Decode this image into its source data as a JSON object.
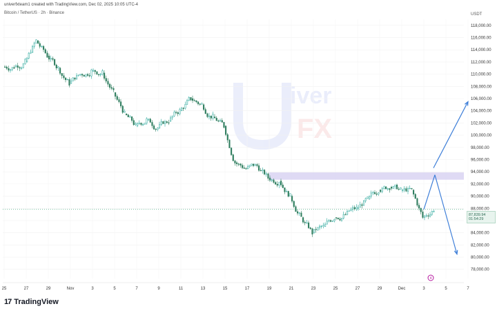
{
  "header": {
    "credit": "univerfxteam1 created with TradingView.com, Dec 02, 2025 10:05 UTC-4",
    "symbol": "Bitcoin / TetherUS · 2h · Binance",
    "currency": "USDT"
  },
  "footer": {
    "brand": "TradingView",
    "logo_text": "17"
  },
  "price_tag": {
    "price": "87,839.94",
    "countdown": "01:54:29"
  },
  "event_marker": "4",
  "watermark": {
    "name": "univerfx-logo",
    "lettering": "UniverFX"
  },
  "colors": {
    "up": "#26a69a",
    "down": "#2e7d5e",
    "zone": "#d9d4f2",
    "arrow": "#3d7ed8",
    "price_line": "#2e9e6f"
  },
  "chart_data": {
    "type": "line",
    "title": "",
    "xlabel": "",
    "ylabel": "",
    "ylim": [
      76500,
      119000
    ],
    "yticks": [
      78000,
      80000,
      82000,
      84000,
      86000,
      88000,
      90000,
      92000,
      94000,
      96000,
      98000,
      100000,
      102000,
      104000,
      106000,
      108000,
      110000,
      112000,
      114000,
      116000,
      118000
    ],
    "ytick_labels": [
      "78,000.00",
      "80,000.00",
      "82,000.00",
      "84,000.00",
      "86,000.00",
      "88,000.00",
      "90,000.00",
      "92,000.00",
      "94,000.00",
      "96,000.00",
      "98,000.00",
      "100,000.00",
      "102,000.00",
      "104,000.00",
      "106,000.00",
      "108,000.00",
      "110,000.00",
      "112,000.00",
      "114,000.00",
      "116,000.00",
      "118,000.00"
    ],
    "xtick_labels": [
      "25",
      "27",
      "29",
      "Nov",
      "3",
      "5",
      "7",
      "9",
      "11",
      "13",
      "15",
      "17",
      "19",
      "21",
      "23",
      "25",
      "27",
      "29",
      "Dec",
      "3",
      "5",
      "7"
    ],
    "x": [
      "Oct 25",
      "Oct 26",
      "Oct 27",
      "Oct 28",
      "Oct 29",
      "Oct 30",
      "Oct 31",
      "Nov 1",
      "Nov 2",
      "Nov 3",
      "Nov 4",
      "Nov 5",
      "Nov 6",
      "Nov 7",
      "Nov 8",
      "Nov 9",
      "Nov 10",
      "Nov 11",
      "Nov 12",
      "Nov 13",
      "Nov 14",
      "Nov 15",
      "Nov 16",
      "Nov 17",
      "Nov 18",
      "Nov 19",
      "Nov 20",
      "Nov 21",
      "Nov 22",
      "Nov 23",
      "Nov 24",
      "Nov 25",
      "Nov 26",
      "Nov 27",
      "Nov 28",
      "Nov 29",
      "Nov 30",
      "Dec 1",
      "Dec 2"
    ],
    "series": [
      {
        "values": [
          111200,
          112000,
          115500,
          113000,
          111000,
          108500,
          110000,
          110500,
          110200,
          107000,
          103500,
          101500,
          102500,
          101200,
          102300,
          104000,
          106000,
          105000,
          103000,
          101500,
          95500,
          94500,
          95000,
          93000,
          92500,
          90000,
          86500,
          84000,
          85000,
          86500,
          87000,
          88000,
          89500,
          91000,
          91500,
          91000,
          91000,
          86500,
          87840
        ]
      }
    ],
    "resistance_zone": [
      92700,
      93900
    ],
    "last_price": 87839.94,
    "projection": {
      "pivot": {
        "x": "Dec 3",
        "y": 93500
      },
      "up_target": {
        "x": "Dec 6",
        "y": 105500
      },
      "down_target": {
        "x": "Dec 5",
        "y": 80500
      }
    },
    "grid": true
  }
}
